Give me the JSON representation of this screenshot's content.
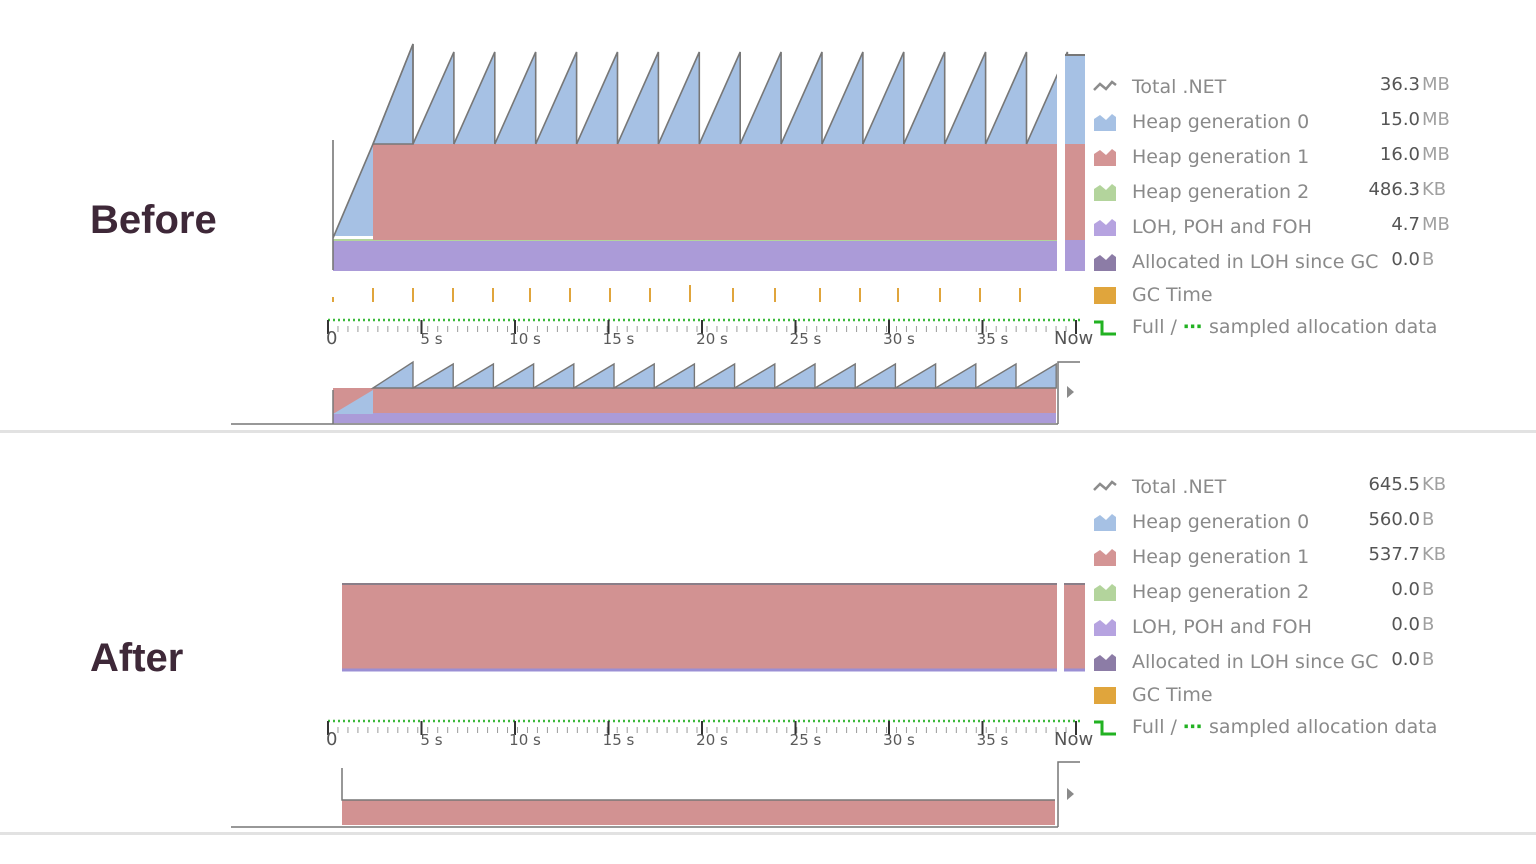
{
  "panels": [
    {
      "label": "Before",
      "legend": [
        {
          "icon": "total-net-icon",
          "label": "Total .NET",
          "value": "36.3",
          "unit": "MB",
          "color": "#8c8c8c"
        },
        {
          "icon": "heap-gen0-icon",
          "label": "Heap generation 0",
          "value": "15.0",
          "unit": "MB",
          "color": "#a6c1e4"
        },
        {
          "icon": "heap-gen1-icon",
          "label": "Heap generation 1",
          "value": "16.0",
          "unit": "MB",
          "color": "#d49595"
        },
        {
          "icon": "heap-gen2-icon",
          "label": "Heap generation 2",
          "value": "486.3",
          "unit": "KB",
          "color": "#b3d49c"
        },
        {
          "icon": "loh-poh-foh-icon",
          "label": "LOH, POH and FOH",
          "value": "4.7",
          "unit": "MB",
          "color": "#b6a3e0"
        },
        {
          "icon": "allocated-loh-icon",
          "label": "Allocated in LOH since GC",
          "value": "0.0",
          "unit": "B",
          "color": "#8c7ca6"
        },
        {
          "icon": "gc-time-icon",
          "label": "GC Time",
          "value": "",
          "unit": "",
          "color": "#e0a53c"
        },
        {
          "icon": "full-sampled-icon",
          "label": "Full / ",
          "label_dots": "⋯",
          "label_tail": " sampled allocation data",
          "value": "",
          "unit": "",
          "color": "#22b222"
        }
      ],
      "axis": {
        "ticks": [
          "0",
          "5 s",
          "10 s",
          "15 s",
          "20 s",
          "25 s",
          "30 s",
          "35 s",
          "Now"
        ]
      }
    },
    {
      "label": "After",
      "legend": [
        {
          "icon": "total-net-icon",
          "label": "Total .NET",
          "value": "645.5",
          "unit": "KB",
          "color": "#8c8c8c"
        },
        {
          "icon": "heap-gen0-icon",
          "label": "Heap generation 0",
          "value": "560.0",
          "unit": "B",
          "color": "#a6c1e4"
        },
        {
          "icon": "heap-gen1-icon",
          "label": "Heap generation 1",
          "value": "537.7",
          "unit": "KB",
          "color": "#d49595"
        },
        {
          "icon": "heap-gen2-icon",
          "label": "Heap generation 2",
          "value": "0.0",
          "unit": "B",
          "color": "#b3d49c"
        },
        {
          "icon": "loh-poh-foh-icon",
          "label": "LOH, POH and FOH",
          "value": "0.0",
          "unit": "B",
          "color": "#b6a3e0"
        },
        {
          "icon": "allocated-loh-icon",
          "label": "Allocated in LOH since GC",
          "value": "0.0",
          "unit": "B",
          "color": "#8c7ca6"
        },
        {
          "icon": "gc-time-icon",
          "label": "GC Time",
          "value": "",
          "unit": "",
          "color": "#e0a53c"
        },
        {
          "icon": "full-sampled-icon",
          "label": "Full / ",
          "label_dots": "⋯",
          "label_tail": " sampled allocation data",
          "value": "",
          "unit": "",
          "color": "#22b222"
        }
      ],
      "axis": {
        "ticks": [
          "0",
          "5 s",
          "10 s",
          "15 s",
          "20 s",
          "25 s",
          "30 s",
          "35 s",
          "Now"
        ]
      }
    }
  ]
}
